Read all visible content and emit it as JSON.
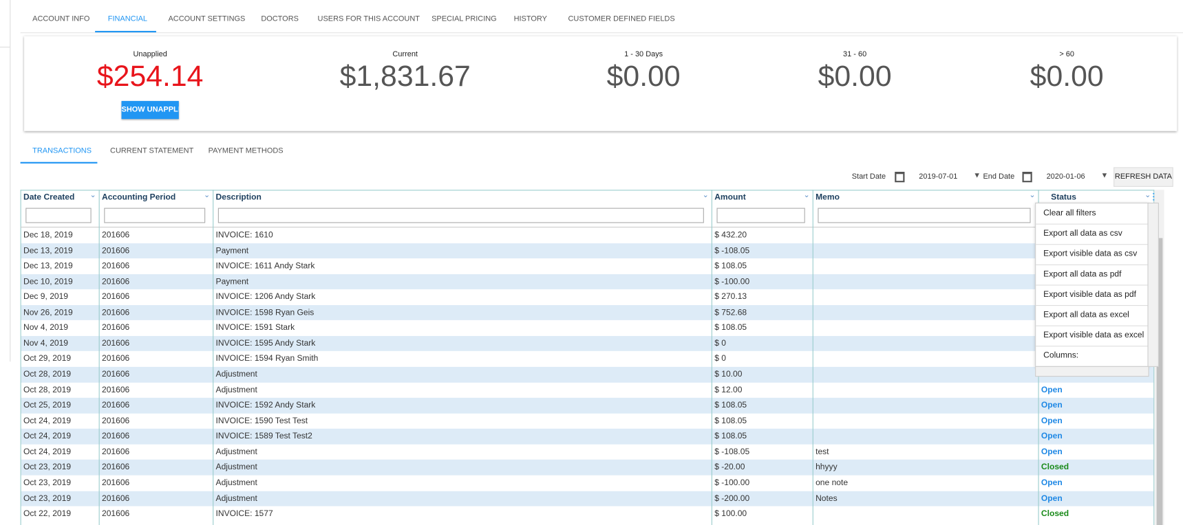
{
  "tabs": [
    "ACCOUNT INFO",
    "FINANCIAL",
    "ACCOUNT SETTINGS",
    "DOCTORS",
    "USERS FOR THIS ACCOUNT",
    "SPECIAL PRICING",
    "HISTORY",
    "CUSTOMER DEFINED FIELDS"
  ],
  "summary": [
    {
      "label": "Unapplied",
      "value": "$254.14"
    },
    {
      "label": "Current",
      "value": "$1,831.67"
    },
    {
      "label": "1 - 30 Days",
      "value": "$0.00"
    },
    {
      "label": "31 - 60",
      "value": "$0.00"
    },
    {
      "label": "> 60",
      "value": "$0.00"
    }
  ],
  "unapplied_button": "SHOW UNAPPLI",
  "subtabs": [
    "TRANSACTIONS",
    "CURRENT STATEMENT",
    "PAYMENT METHODS"
  ],
  "filters": {
    "start_label": "Start Date",
    "start_value": "2019-07-01",
    "end_label": "End Date",
    "end_value": "2020-01-06",
    "refresh": "REFRESH DATA"
  },
  "table": {
    "columns": [
      "Date Created",
      "Accounting Period",
      "Description",
      "Amount",
      "Memo",
      "Status"
    ],
    "rows": [
      [
        "Dec 18, 2019",
        "201606",
        "INVOICE: 1610",
        "$ 432.20",
        null,
        null
      ],
      [
        "Dec 13, 2019",
        "201606",
        "Payment",
        "$ -108.05",
        null,
        null
      ],
      [
        "Dec 13, 2019",
        "201606",
        "INVOICE: 1611 Andy Stark",
        "$ 108.05",
        null,
        null
      ],
      [
        "Dec 10, 2019",
        "201606",
        "Payment",
        "$ -100.00",
        null,
        null
      ],
      [
        "Dec 9, 2019",
        "201606",
        "INVOICE: 1206 Andy Stark",
        "$ 270.13",
        null,
        null
      ],
      [
        "Nov 26, 2019",
        "201606",
        "INVOICE: 1598 Ryan Geis",
        "$ 752.68",
        null,
        null
      ],
      [
        "Nov 4, 2019",
        "201606",
        "INVOICE: 1591 Stark",
        "$ 108.05",
        null,
        null
      ],
      [
        "Nov 4, 2019",
        "201606",
        "INVOICE: 1595 Andy Stark",
        "$ 0",
        null,
        null
      ],
      [
        "Oct 29, 2019",
        "201606",
        "INVOICE: 1594 Ryan Smith",
        "$ 0",
        null,
        null
      ],
      [
        "Oct 28, 2019",
        "201606",
        "Adjustment",
        "$ 10.00",
        null,
        null
      ],
      [
        "Oct 28, 2019",
        "201606",
        "Adjustment",
        "$ 12.00",
        null,
        "Open"
      ],
      [
        "Oct 25, 2019",
        "201606",
        "INVOICE: 1592 Andy Stark",
        "$ 108.05",
        null,
        "Open"
      ],
      [
        "Oct 24, 2019",
        "201606",
        "INVOICE: 1590 Test Test",
        "$ 108.05",
        null,
        "Open"
      ],
      [
        "Oct 24, 2019",
        "201606",
        "INVOICE: 1589 Test Test2",
        "$ 108.05",
        null,
        "Open"
      ],
      [
        "Oct 24, 2019",
        "201606",
        "Adjustment",
        "$ -108.05",
        "test",
        "Open"
      ],
      [
        "Oct 23, 2019",
        "201606",
        "Adjustment",
        "$ -20.00",
        "hhyyy",
        "Closed"
      ],
      [
        "Oct 23, 2019",
        "201606",
        "Adjustment",
        "$ -100.00",
        "one note",
        "Open"
      ],
      [
        "Oct 23, 2019",
        "201606",
        "Adjustment",
        "$ -200.00",
        "Notes",
        "Open"
      ],
      [
        "Oct 22, 2019",
        "201606",
        "INVOICE: 1577",
        "$ 100.00",
        null,
        "Closed"
      ]
    ]
  },
  "menu": [
    "Clear all filters",
    "Export all data as csv",
    "Export visible data as csv",
    "Export all data as pdf",
    "Export visible data as pdf",
    "Export all data as excel",
    "Export visible data as excel",
    "Columns:"
  ]
}
